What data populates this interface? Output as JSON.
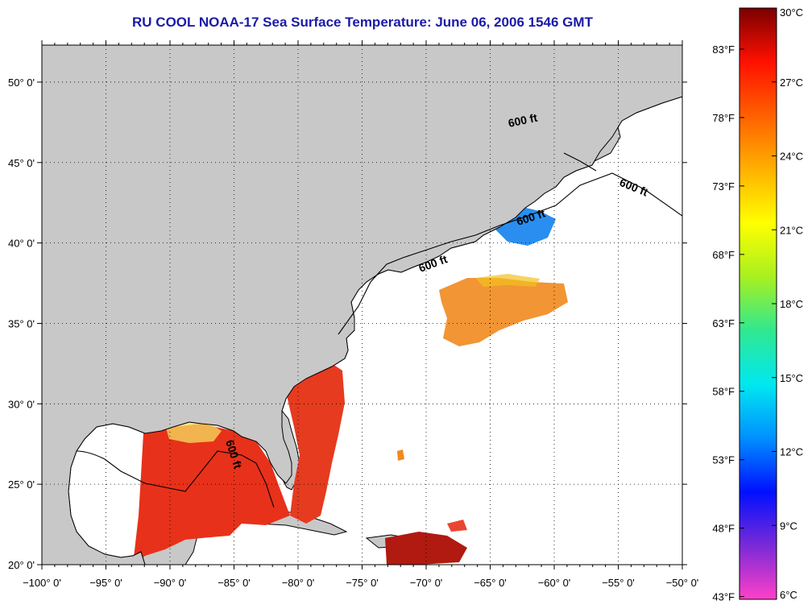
{
  "title": "RU COOL  NOAA-17  Sea Surface Temperature:  June 06, 2006 1546 GMT",
  "map": {
    "lon_range": [
      -100,
      -50
    ],
    "lat_range": [
      20,
      52.3
    ],
    "lon_ticks": [
      "−100° 0'",
      "−95° 0'",
      "−90° 0'",
      "−85° 0'",
      "−80° 0'",
      "−75° 0'",
      "−70° 0'",
      "−65° 0'",
      "−60° 0'",
      "−55° 0'",
      "−50° 0'"
    ],
    "lat_ticks": [
      "20° 0'",
      "25° 0'",
      "30° 0'",
      "35° 0'",
      "40° 0'",
      "45° 0'",
      "50° 0'"
    ],
    "contour_label": "600 ft",
    "colors": {
      "land": "#c8c8c8",
      "water_nodata": "#ffffff",
      "gulf_warm": "#e8311a",
      "stream_warm": "#e63b1f",
      "sargasso": "#f08a1f",
      "labrador_cold": "#1a2ee8",
      "coastal_cold": "#2a8ef0",
      "lakes_mix": "#8ee05a",
      "newfoundland_pink": "#ff4fd8"
    }
  },
  "colorbar": {
    "min_c": 6,
    "max_c": 30,
    "celsius_labels": [
      "30°C",
      "27°C",
      "24°C",
      "21°C",
      "18°C",
      "15°C",
      "12°C",
      "9°C",
      "6°C"
    ],
    "fahrenheit_labels": [
      "83°F",
      "78°F",
      "73°F",
      "68°F",
      "63°F",
      "58°F",
      "53°F",
      "48°F",
      "43°F"
    ],
    "stops": [
      "#ff40c8",
      "#7a2ad8",
      "#0010ff",
      "#0090ff",
      "#00e8f0",
      "#30e890",
      "#a8f020",
      "#ffff00",
      "#ffb000",
      "#ff6000",
      "#ff1000",
      "#7a0000"
    ]
  }
}
